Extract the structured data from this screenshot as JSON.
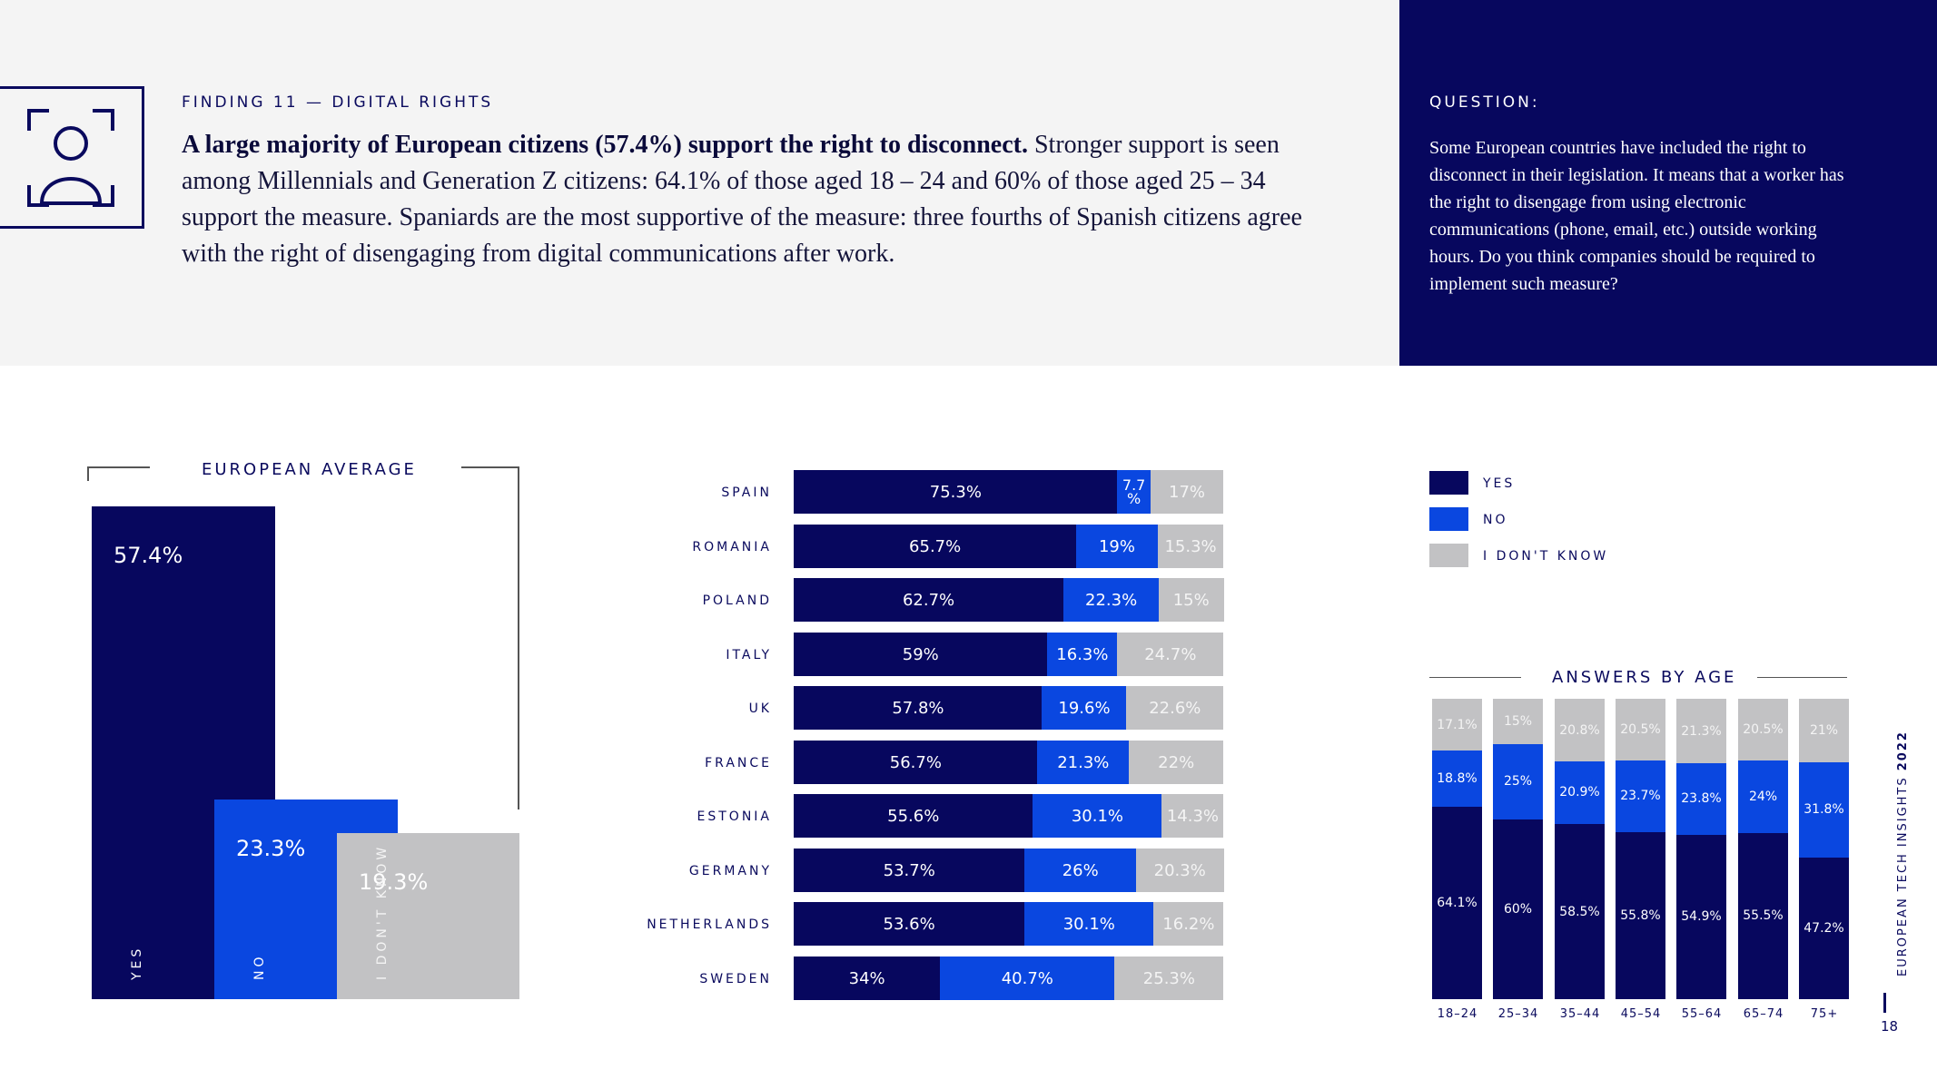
{
  "header": {
    "finding_label": "FINDING 11 — DIGITAL RIGHTS",
    "headline_bold": "A large majority of European citizens (57.4%) support the right to disconnect.",
    "headline_rest": " Stronger support is seen among Millennials and Generation Z citizens: 64.1% of those aged 18 – 24 and 60% of those aged 25 – 34 support the measure. Spaniards are the most supportive of the measure: three fourths of Spanish citizens agree with the right of disengaging from digital communications after work."
  },
  "question": {
    "label": "QUESTION:",
    "text": "Some European countries have included the right to disconnect in their legislation. It means that a worker has the right to disengage from using electronic communications (phone, email, etc.) outside working hours. Do you think companies should be required to implement such measure?"
  },
  "colors": {
    "yes": "#07075e",
    "no": "#0a47e0",
    "idk": "#c2c2c4",
    "top_band": "#f4f4f4",
    "panel": "#07075e"
  },
  "legend": [
    "YES",
    "NO",
    "I DON'T KNOW"
  ],
  "chart_data": [
    {
      "type": "bar",
      "title": "EUROPEAN AVERAGE",
      "categories": [
        "YES",
        "NO",
        "I DON'T KNOW"
      ],
      "values": [
        57.4,
        23.3,
        19.3
      ],
      "labels": [
        "57.4%",
        "23.3%",
        "19.3%"
      ],
      "ylim": [
        0,
        57.4
      ]
    },
    {
      "type": "bar",
      "orientation": "horizontal-stacked",
      "categories": [
        "SPAIN",
        "ROMANIA",
        "POLAND",
        "ITALY",
        "UK",
        "FRANCE",
        "ESTONIA",
        "GERMANY",
        "NETHERLANDS",
        "SWEDEN"
      ],
      "series": [
        {
          "name": "YES",
          "values": [
            75.3,
            65.7,
            62.7,
            59,
            57.8,
            56.7,
            55.6,
            53.7,
            53.6,
            34
          ],
          "labels": [
            "75.3%",
            "65.7%",
            "62.7%",
            "59%",
            "57.8%",
            "56.7%",
            "55.6%",
            "53.7%",
            "53.6%",
            "34%"
          ]
        },
        {
          "name": "NO",
          "values": [
            7.7,
            19,
            22.3,
            16.3,
            19.6,
            21.3,
            30.1,
            26,
            30.1,
            40.7
          ],
          "labels": [
            "7.7\n%",
            "19%",
            "22.3%",
            "16.3%",
            "19.6%",
            "21.3%",
            "30.1%",
            "26%",
            "30.1%",
            "40.7%"
          ]
        },
        {
          "name": "I DON'T KNOW",
          "values": [
            17,
            15.3,
            15,
            24.7,
            22.6,
            22,
            14.3,
            20.3,
            16.2,
            25.3
          ],
          "labels": [
            "17%",
            "15.3%",
            "15%",
            "24.7%",
            "22.6%",
            "22%",
            "14.3%",
            "20.3%",
            "16.2%",
            "25.3%"
          ]
        }
      ]
    },
    {
      "type": "bar",
      "orientation": "vertical-stacked",
      "title": "ANSWERS BY AGE",
      "categories": [
        "18–24",
        "25–34",
        "35–44",
        "45–54",
        "55–64",
        "65–74",
        "75+"
      ],
      "series": [
        {
          "name": "YES",
          "values": [
            64.1,
            60,
            58.5,
            55.8,
            54.9,
            55.5,
            47.2
          ],
          "labels": [
            "64.1%",
            "60%",
            "58.5%",
            "55.8%",
            "54.9%",
            "55.5%",
            "47.2%"
          ]
        },
        {
          "name": "NO",
          "values": [
            18.8,
            25,
            20.9,
            23.7,
            23.8,
            24,
            31.8
          ],
          "labels": [
            "18.8%",
            "25%",
            "20.9%",
            "23.7%",
            "23.8%",
            "24%",
            "31.8%"
          ]
        },
        {
          "name": "I DON'T KNOW",
          "values": [
            17.1,
            15,
            20.8,
            20.5,
            21.3,
            20.5,
            21
          ],
          "labels": [
            "17.1%",
            "15%",
            "20.8%",
            "20.5%",
            "21.3%",
            "20.5%",
            "21%"
          ]
        }
      ]
    }
  ],
  "footer": {
    "side_label": "EUROPEAN TECH INSIGHTS",
    "side_year": "2022",
    "page_number": "18"
  }
}
